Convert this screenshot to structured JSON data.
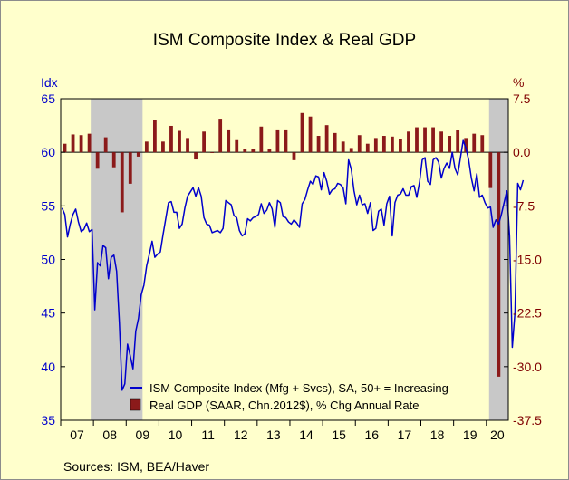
{
  "chart_data": {
    "type": "bar+line",
    "title": "ISM Composite Index & Real GDP",
    "left_axis": {
      "unit": "Idx",
      "range": [
        35,
        65
      ],
      "ticks": [
        35,
        40,
        45,
        50,
        55,
        60,
        65
      ],
      "tick_labels": [
        "35",
        "40",
        "45",
        "50",
        "55",
        "60",
        "65"
      ],
      "color": "#0000cc"
    },
    "right_axis": {
      "unit": "%",
      "range": [
        -37.5,
        7.5
      ],
      "ticks": [
        -37.5,
        -30.0,
        -22.5,
        -15.0,
        -7.5,
        0.0,
        7.5
      ],
      "tick_labels": [
        "-37.5",
        "-30.0",
        "-22.5",
        "-15.0",
        "-7.5",
        "0.0",
        "7.5"
      ],
      "color": "#800000"
    },
    "x_axis": {
      "start_year": 2007,
      "end_year": 2020.67,
      "year_labels": [
        "07",
        "08",
        "09",
        "10",
        "11",
        "12",
        "13",
        "14",
        "15",
        "16",
        "17",
        "18",
        "19",
        "20"
      ]
    },
    "recessions": [
      [
        2007.917,
        2009.5
      ],
      [
        2020.083,
        2020.67
      ]
    ],
    "series": [
      {
        "name": "ISM Composite Index (Mfg + Svcs), SA, 50+ = Increasing",
        "type": "line",
        "axis": "left",
        "color": "#0000cc",
        "start": 2007.0,
        "frequency": "monthly",
        "values": [
          54.8,
          54.2,
          52.1,
          53.3,
          54.2,
          54.7,
          53.5,
          52.6,
          52.8,
          53.4,
          52.6,
          52.8,
          45.3,
          49.7,
          49.4,
          51.3,
          51.1,
          48.2,
          50.2,
          50.4,
          48.9,
          44.1,
          37.8,
          38.4,
          42.1,
          41.0,
          39.8,
          43.3,
          44.5,
          46.7,
          47.6,
          49.4,
          50.5,
          51.7,
          50.2,
          50.5,
          50.7,
          52.3,
          53.8,
          55.3,
          55.4,
          54.4,
          54.4,
          52.9,
          53.3,
          54.8,
          55.9,
          56.3,
          56.7,
          55.9,
          56.7,
          55.9,
          53.9,
          53.3,
          53.2,
          52.5,
          52.6,
          52.7,
          52.5,
          52.9,
          55.5,
          55.3,
          55.1,
          54.1,
          53.9,
          52.7,
          52.2,
          52.4,
          53.8,
          53.6,
          53.9,
          54.0,
          54.2,
          55.2,
          54.3,
          54.6,
          55.3,
          54.7,
          53.0,
          55.5,
          55.3,
          54.0,
          53.9,
          53.5,
          53.3,
          53.7,
          53.4,
          53.0,
          55.2,
          55.6,
          56.5,
          57.3,
          57.0,
          57.8,
          57.7,
          56.5,
          58.1,
          57.3,
          56.1,
          56.5,
          56.6,
          57.1,
          57.0,
          56.7,
          55.2,
          59.3,
          58.4,
          56.4,
          55.1,
          56.0,
          55.1,
          55.2,
          54.3,
          55.3,
          52.7,
          52.9,
          54.5,
          54.7,
          53.2,
          55.2,
          55.9,
          52.2,
          55.3,
          56.0,
          56.1,
          56.6,
          56.0,
          56.0,
          56.8,
          56.9,
          55.8,
          57.2,
          59.3,
          59.5,
          57.3,
          57.0,
          59.3,
          59.5,
          59.1,
          57.6,
          58.5,
          59.0,
          58.5,
          60.0,
          58.5,
          57.9,
          59.5,
          61.1,
          60.4,
          59.3,
          57.6,
          56.4,
          58.0,
          55.8,
          56.0,
          55.3,
          54.8,
          54.9,
          53.0,
          53.7,
          53.3,
          54.2,
          55.3,
          56.4,
          52.2,
          41.8,
          45.1,
          57.1,
          56.5,
          57.4
        ],
        "legend_label": "ISM Composite Index (Mfg + Svcs), SA, 50+ = Increasing"
      },
      {
        "name": "Real GDP (SAAR, Chn.2012$), % Chg Annual Rate",
        "type": "bar",
        "axis": "right",
        "color": "#8b1a1a",
        "start": 2007.0,
        "frequency": "quarterly",
        "values": [
          1.2,
          2.5,
          2.4,
          2.6,
          -2.3,
          2.1,
          -2.1,
          -8.4,
          -4.4,
          -0.6,
          1.5,
          4.5,
          1.5,
          3.7,
          3.0,
          2.0,
          -1.0,
          2.9,
          -0.1,
          4.7,
          3.2,
          1.7,
          0.5,
          0.5,
          3.6,
          0.5,
          3.2,
          3.2,
          -1.1,
          5.5,
          5.0,
          2.3,
          3.8,
          2.7,
          1.5,
          0.6,
          2.4,
          1.2,
          2.0,
          2.3,
          2.2,
          1.9,
          2.9,
          3.5,
          3.5,
          3.5,
          2.9,
          2.3,
          3.1,
          2.0,
          2.6,
          2.4,
          -5.0,
          -31.4
        ],
        "legend_label": "Real GDP (SAAR, Chn.2012$), % Chg Annual Rate"
      }
    ],
    "legend_position": "bottom-right",
    "grid": false
  },
  "source_note": "Sources:  ISM, BEA/Haver"
}
